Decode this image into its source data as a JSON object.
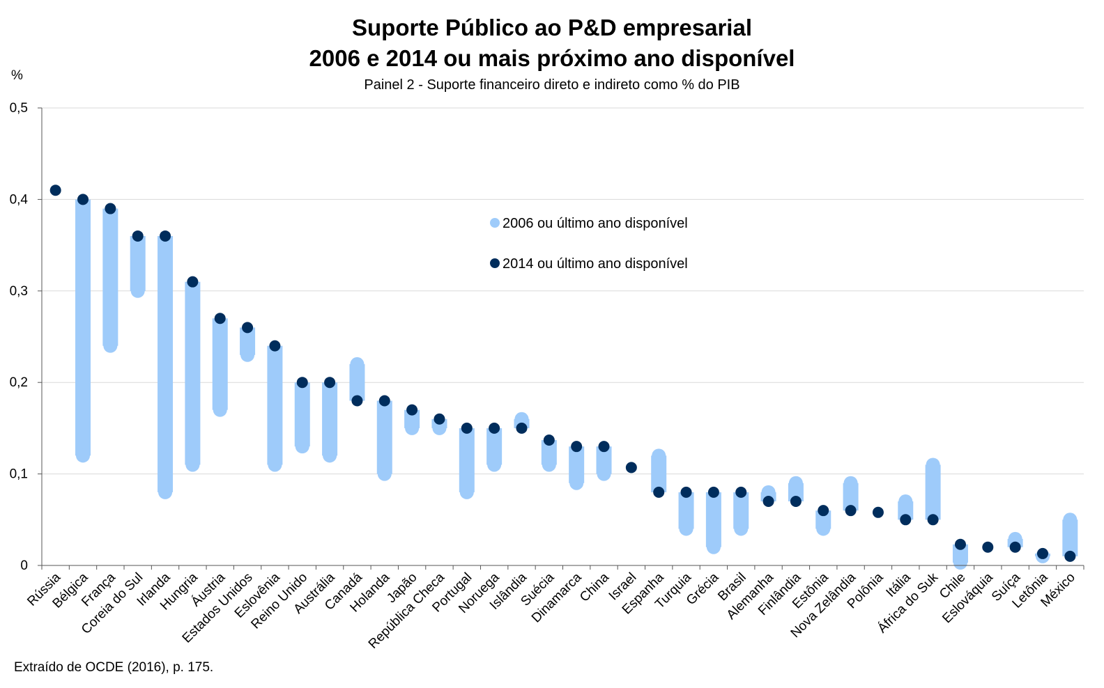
{
  "chart_data": {
    "type": "dot-range",
    "title": "Suporte Público ao P&D empresarial",
    "title2": "2006 e 2014 ou mais próximo ano disponível",
    "subtitle": "Painel 2 - Suporte financeiro direto e indireto como % do PIB",
    "ylabel": "%",
    "ylim": [
      0,
      0.5
    ],
    "yticks": [
      "0",
      "0,1",
      "0,2",
      "0,3",
      "0,4",
      "0,5"
    ],
    "ytick_values": [
      0,
      0.1,
      0.2,
      0.3,
      0.4,
      0.5
    ],
    "grid": true,
    "legend_position": "center",
    "categories": [
      "Rússia",
      "Bélgica",
      "França",
      "Coreia do Sul",
      "Irlanda",
      "Hungria",
      "Áustria",
      "Estados Unidos",
      "Eslovênia",
      "Reino Unido",
      "Austrália",
      "Canadá",
      "Holanda",
      "Japão",
      "República Checa",
      "Portugal",
      "Noruega",
      "Islândia",
      "Suécia",
      "Dinamarca",
      "China",
      "Israel",
      "Espanha",
      "Turquia",
      "Grécia",
      "Brasil",
      "Alemanha",
      "Finlândia",
      "Estônia",
      "Nova Zelândia",
      "Polônia",
      "Itália",
      "África do Suk",
      "Chile",
      "Eslováquia",
      "Suíça",
      "Letônia",
      "México"
    ],
    "series": [
      {
        "name": "2006 ou último ano disponível",
        "color": "#9ecbfa",
        "values": [
          null,
          0.12,
          0.24,
          0.3,
          0.08,
          0.11,
          0.17,
          0.23,
          0.11,
          0.13,
          0.12,
          0.22,
          0.1,
          0.15,
          0.15,
          0.08,
          0.11,
          0.16,
          0.11,
          0.09,
          0.1,
          null,
          0.12,
          0.04,
          0.02,
          0.04,
          0.08,
          0.09,
          0.04,
          0.09,
          null,
          0.07,
          0.11,
          0.003,
          null,
          0.029,
          0.01,
          0.05
        ]
      },
      {
        "name": "2014 ou último ano disponível",
        "color": "#002d5c",
        "values": [
          0.41,
          0.4,
          0.39,
          0.36,
          0.36,
          0.31,
          0.27,
          0.26,
          0.24,
          0.2,
          0.2,
          0.18,
          0.18,
          0.17,
          0.16,
          0.15,
          0.15,
          0.15,
          0.137,
          0.13,
          0.13,
          0.107,
          0.08,
          0.08,
          0.08,
          0.08,
          0.07,
          0.07,
          0.06,
          0.06,
          0.058,
          0.05,
          0.05,
          0.023,
          0.02,
          0.02,
          0.013,
          0.01
        ]
      }
    ],
    "range_bar_color": "#9ecbfa",
    "gridline_color": "#d9d9d9"
  },
  "footer": {
    "source": "Extraído de OCDE (2016), p. 175."
  }
}
